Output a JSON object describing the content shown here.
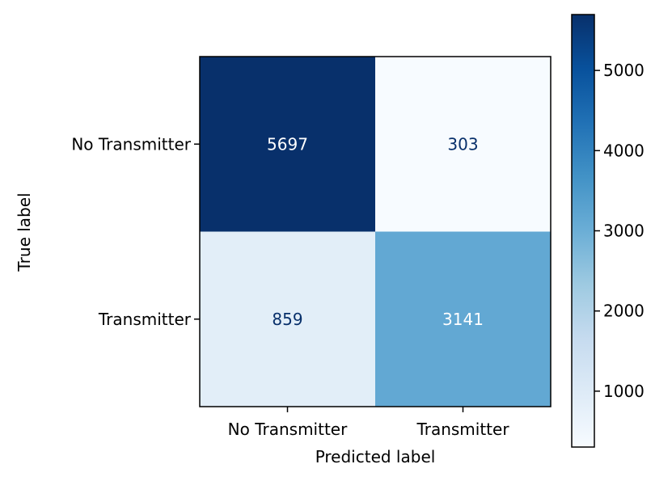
{
  "chart_data": {
    "type": "heatmap",
    "title": "",
    "xlabel": "Predicted label",
    "ylabel": "True label",
    "x_categories": [
      "No Transmitter",
      "Transmitter"
    ],
    "y_categories": [
      "No Transmitter",
      "Transmitter"
    ],
    "values": [
      [
        5697,
        303
      ],
      [
        859,
        3141
      ]
    ],
    "colormap": "Blues",
    "colorbar": {
      "min": 303,
      "max": 5697,
      "ticks": [
        1000,
        2000,
        3000,
        4000,
        5000
      ]
    },
    "grid": false
  }
}
